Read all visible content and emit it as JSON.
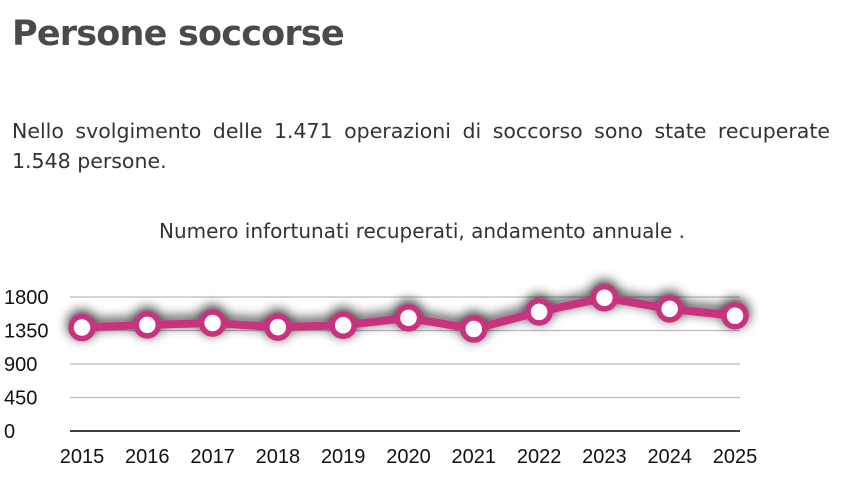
{
  "header": {
    "title": "Persone soccorse"
  },
  "intro": {
    "text": "Nello svolgimento delle 1.471 operazioni di soccorso sono state recuperate 1.548 persone."
  },
  "chart_data": {
    "type": "line",
    "title": "Numero infortunati recuperati, andamento annuale .",
    "xlabel": "",
    "ylabel": "",
    "categories": [
      "2015",
      "2016",
      "2017",
      "2018",
      "2019",
      "2020",
      "2021",
      "2022",
      "2023",
      "2024",
      "2025"
    ],
    "series": [
      {
        "values": [
          1390,
          1425,
          1450,
          1395,
          1420,
          1520,
          1370,
          1600,
          1790,
          1640,
          1548
        ]
      }
    ],
    "ylim": [
      0,
      1800
    ],
    "yticks": [
      "0",
      "450",
      "900",
      "1350",
      "1800"
    ],
    "grid": true,
    "legend": "none",
    "colors": {
      "line": "#c8307e",
      "marker_fill": "#ffffff",
      "grid": "#bbbbbb",
      "axis": "#000000"
    }
  }
}
